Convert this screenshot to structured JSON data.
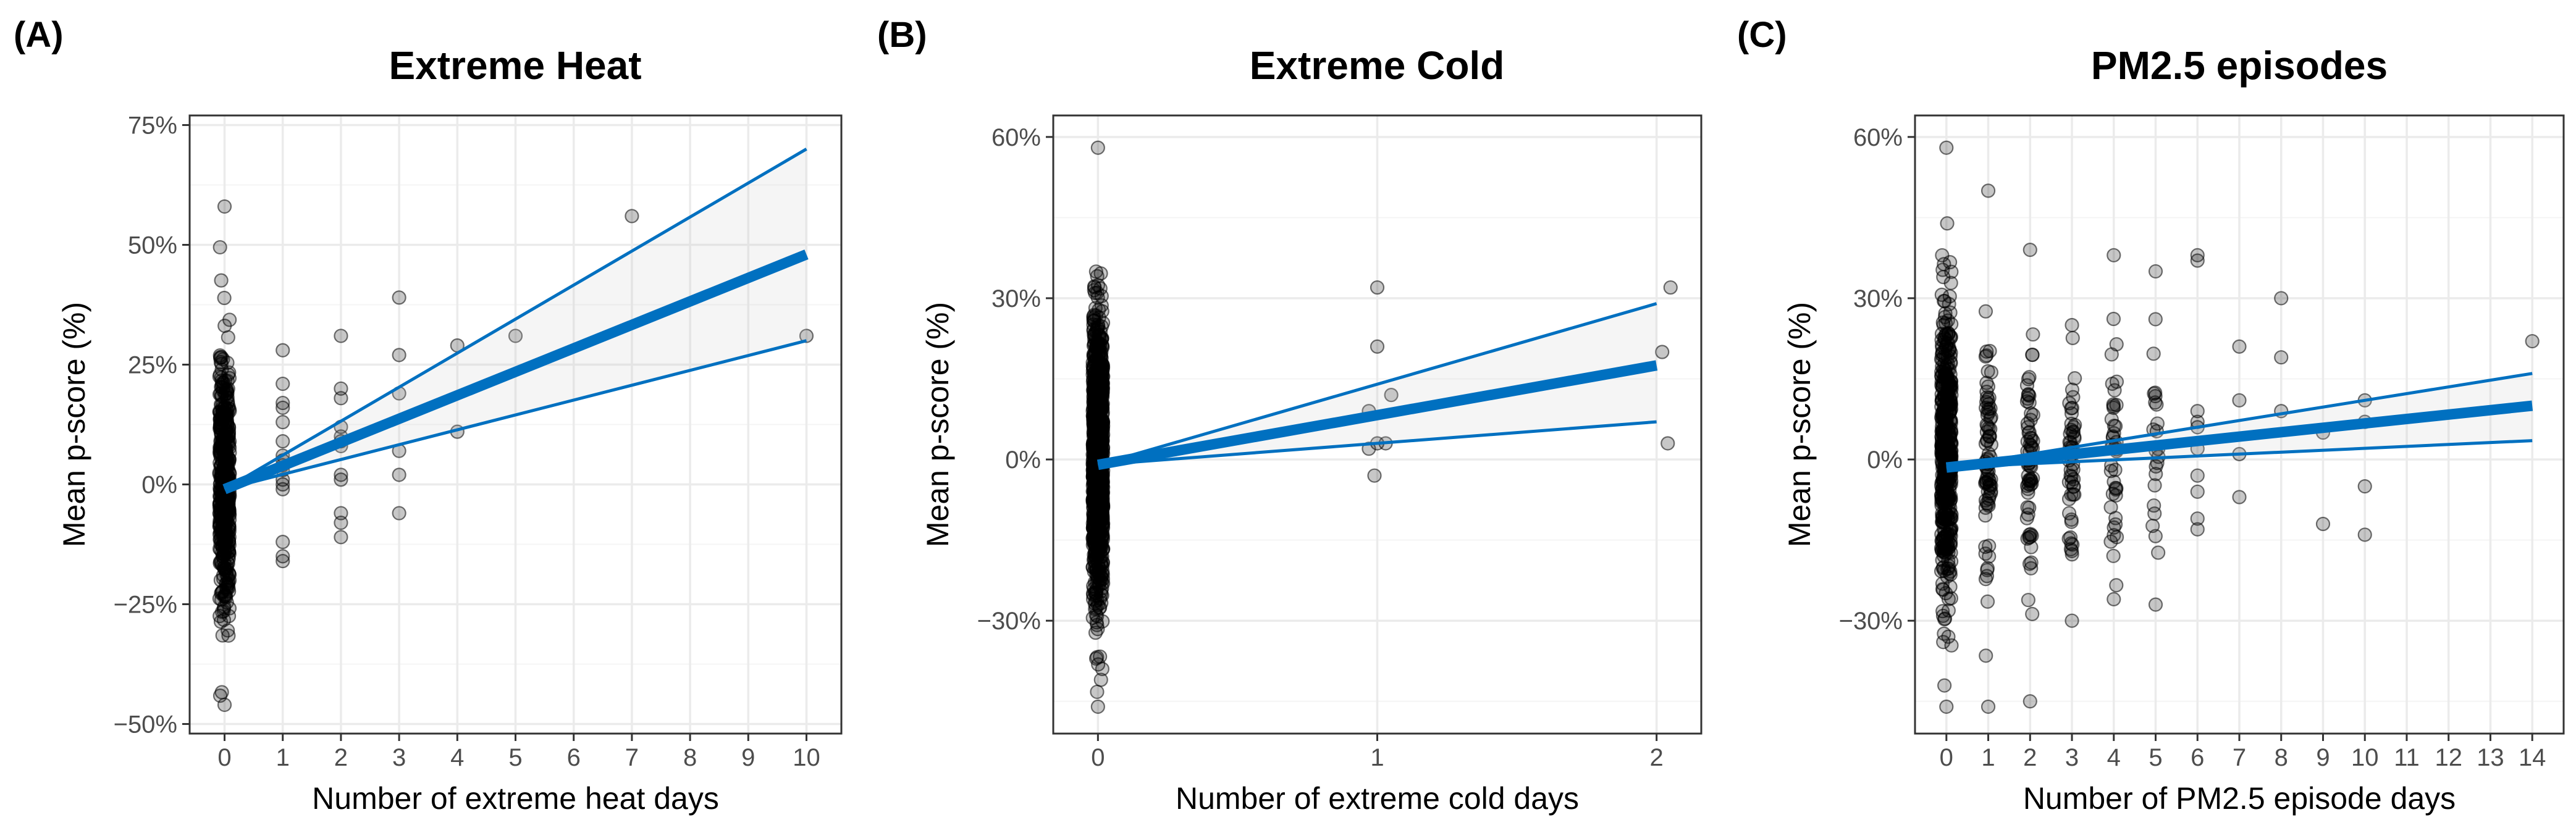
{
  "chart_data": [
    {
      "type": "scatter",
      "tag": "(A)",
      "title": "Extreme Heat",
      "xlabel": "Number of extreme heat days",
      "ylabel": "Mean p-score (%)",
      "xlim": [
        -0.6,
        10.6
      ],
      "ylim": [
        -52,
        77
      ],
      "xticks": [
        0,
        1,
        2,
        3,
        4,
        5,
        6,
        7,
        8,
        9,
        10
      ],
      "xtick_labels": [
        "0",
        "1",
        "2",
        "3",
        "4",
        "5",
        "6",
        "7",
        "8",
        "9",
        "10"
      ],
      "yticks": [
        -50,
        -25,
        0,
        25,
        50,
        75
      ],
      "ytick_labels": [
        "−50%",
        "−25%",
        "0%",
        "25%",
        "50%",
        "75%"
      ],
      "fit": {
        "x": [
          0,
          10
        ],
        "y": [
          -1,
          48
        ]
      },
      "ci_upper": {
        "x": [
          0,
          10
        ],
        "y": [
          -1,
          70
        ]
      },
      "ci_lower": {
        "x": [
          0,
          10
        ],
        "y": [
          -1,
          30
        ]
      },
      "zero_day_cloud": {
        "n": 520,
        "min": -46,
        "max": 58,
        "sd": 13
      },
      "points": [
        [
          1,
          28
        ],
        [
          1,
          21
        ],
        [
          1,
          17
        ],
        [
          1,
          16
        ],
        [
          1,
          13
        ],
        [
          1,
          9
        ],
        [
          1,
          6
        ],
        [
          1,
          5
        ],
        [
          1,
          4
        ],
        [
          1,
          3
        ],
        [
          1,
          1
        ],
        [
          1,
          0
        ],
        [
          1,
          -1
        ],
        [
          1,
          -12
        ],
        [
          1,
          -16
        ],
        [
          1,
          -15
        ],
        [
          2,
          31
        ],
        [
          2,
          20
        ],
        [
          2,
          18
        ],
        [
          2,
          12
        ],
        [
          2,
          10
        ],
        [
          2,
          9
        ],
        [
          2,
          8
        ],
        [
          2,
          2
        ],
        [
          2,
          1
        ],
        [
          2,
          -6
        ],
        [
          2,
          -8
        ],
        [
          2,
          -11
        ],
        [
          3,
          39
        ],
        [
          3,
          27
        ],
        [
          3,
          19
        ],
        [
          3,
          7
        ],
        [
          3,
          2
        ],
        [
          3,
          -6
        ],
        [
          4,
          29
        ],
        [
          4,
          11
        ],
        [
          5,
          31
        ],
        [
          7,
          56
        ],
        [
          10,
          31
        ]
      ]
    },
    {
      "type": "scatter",
      "tag": "(B)",
      "title": "Extreme Cold",
      "xlabel": "Number of extreme cold days",
      "ylabel": "Mean p-score (%)",
      "xlim": [
        -0.16,
        2.16
      ],
      "ylim": [
        -51,
        64
      ],
      "xticks": [
        0,
        1,
        2
      ],
      "xtick_labels": [
        "0",
        "1",
        "2"
      ],
      "yticks": [
        -30,
        0,
        30,
        60
      ],
      "ytick_labels": [
        "−30%",
        "0%",
        "30%",
        "60%"
      ],
      "fit": {
        "x": [
          0,
          2
        ],
        "y": [
          -1,
          17.5
        ]
      },
      "ci_upper": {
        "x": [
          0,
          2
        ],
        "y": [
          -1,
          29
        ]
      },
      "ci_lower": {
        "x": [
          0,
          2
        ],
        "y": [
          -1,
          7
        ]
      },
      "zero_day_cloud": {
        "n": 1100,
        "min": -46,
        "max": 58,
        "sd": 13
      },
      "points": [
        [
          1,
          32
        ],
        [
          1,
          21
        ],
        [
          1.05,
          12
        ],
        [
          0.97,
          9
        ],
        [
          1,
          3
        ],
        [
          1.03,
          3
        ],
        [
          0.97,
          2
        ],
        [
          0.99,
          -3
        ],
        [
          2.05,
          32
        ],
        [
          2.02,
          20
        ],
        [
          2.04,
          3
        ]
      ]
    },
    {
      "type": "scatter",
      "tag": "(C)",
      "title": "PM2.5 episodes",
      "xlabel": "Number of PM2.5 episode days",
      "ylabel": "Mean p-score (%)",
      "xlim": [
        -0.75,
        14.75
      ],
      "ylim": [
        -51,
        64
      ],
      "xticks": [
        0,
        1,
        2,
        3,
        4,
        5,
        6,
        7,
        8,
        9,
        10,
        11,
        12,
        13,
        14
      ],
      "xtick_labels": [
        "0",
        "1",
        "2",
        "3",
        "4",
        "5",
        "6",
        "7",
        "8",
        "9",
        "10",
        "11",
        "12",
        "13",
        "14"
      ],
      "yticks": [
        -30,
        0,
        30,
        60
      ],
      "ytick_labels": [
        "−30%",
        "0%",
        "30%",
        "60%"
      ],
      "fit": {
        "x": [
          0,
          14
        ],
        "y": [
          -1.5,
          10
        ]
      },
      "ci_upper": {
        "x": [
          0,
          14
        ],
        "y": [
          -1.5,
          16
        ]
      },
      "ci_lower": {
        "x": [
          0,
          14
        ],
        "y": [
          -1.5,
          3.5
        ]
      },
      "zero_day_cloud": {
        "n": 520,
        "min": -46,
        "max": 58,
        "sd": 14
      },
      "columns": [
        {
          "x": 1,
          "n": 80,
          "min": -46,
          "max": 50,
          "sd": 11
        },
        {
          "x": 2,
          "n": 65,
          "min": -45,
          "max": 39,
          "sd": 11
        },
        {
          "x": 3,
          "n": 50,
          "min": -30,
          "max": 25,
          "sd": 9
        },
        {
          "x": 4,
          "n": 40,
          "min": -26,
          "max": 38,
          "sd": 10
        },
        {
          "x": 5,
          "n": 22,
          "min": -27,
          "max": 35,
          "sd": 11
        }
      ],
      "points": [
        [
          6,
          38
        ],
        [
          6,
          37
        ],
        [
          6,
          9
        ],
        [
          6,
          7
        ],
        [
          6,
          6
        ],
        [
          6,
          2
        ],
        [
          6,
          -3
        ],
        [
          6,
          -6
        ],
        [
          6,
          -11
        ],
        [
          6,
          -13
        ],
        [
          7,
          21
        ],
        [
          7,
          11
        ],
        [
          7,
          1
        ],
        [
          7,
          -7
        ],
        [
          8,
          30
        ],
        [
          8,
          19
        ],
        [
          8,
          9
        ],
        [
          9,
          5
        ],
        [
          9,
          -12
        ],
        [
          10,
          11
        ],
        [
          10,
          7
        ],
        [
          10,
          -5
        ],
        [
          10,
          -14
        ],
        [
          14,
          22
        ]
      ]
    }
  ]
}
